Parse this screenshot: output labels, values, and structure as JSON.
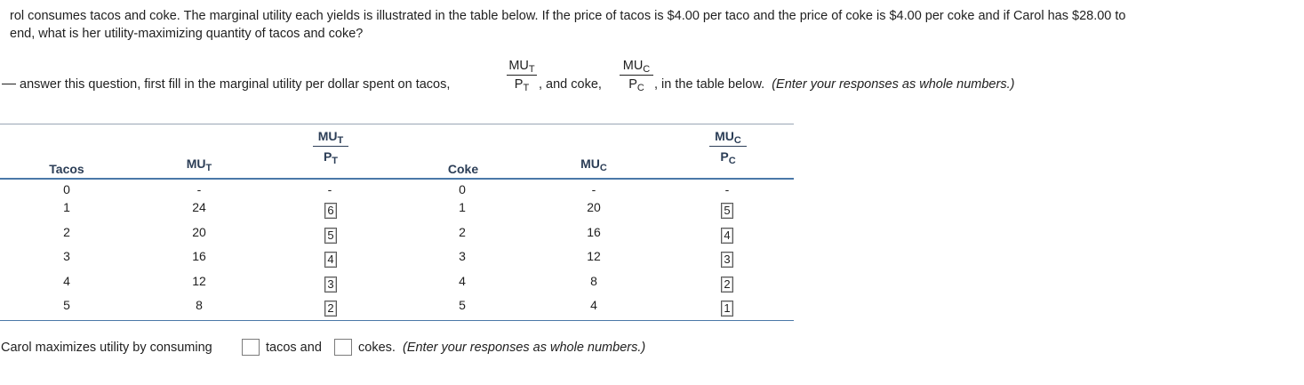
{
  "question": {
    "line1": "rol consumes tacos and coke.  The marginal utility each yields is illustrated in the table below.  If the price of tacos is $4.00 per taco and the price of coke is $4.00 per coke and if Carol has $28.00 to",
    "line2": "end, what is her utility-maximizing quantity of tacos and coke?",
    "instr_a": "answer this question, first fill in the marginal utility per dollar spent on tacos,",
    "instr_b": ", and coke,",
    "instr_c": ", in the table below.",
    "instr_note": "(Enter your responses as whole numbers.)",
    "mu": "MU",
    "p": "P",
    "t": "T",
    "c": "C",
    "comma": ","
  },
  "table": {
    "headers": {
      "tacos": "Tacos",
      "mu": "MU",
      "p": "P",
      "t": "T",
      "coke": "Coke",
      "c": "C"
    },
    "rows": [
      {
        "tacos": "0",
        "mut": "-",
        "mut_pt": "-",
        "coke": "0",
        "muc": "-",
        "muc_pc": "-"
      },
      {
        "tacos": "1",
        "mut": "24",
        "mut_pt": "6",
        "coke": "1",
        "muc": "20",
        "muc_pc": "5"
      },
      {
        "tacos": "2",
        "mut": "20",
        "mut_pt": "5",
        "coke": "2",
        "muc": "16",
        "muc_pc": "4"
      },
      {
        "tacos": "3",
        "mut": "16",
        "mut_pt": "4",
        "coke": "3",
        "muc": "12",
        "muc_pc": "3"
      },
      {
        "tacos": "4",
        "mut": "12",
        "mut_pt": "3",
        "coke": "4",
        "muc": "8",
        "muc_pc": "2"
      },
      {
        "tacos": "5",
        "mut": "8",
        "mut_pt": "2",
        "coke": "5",
        "muc": "4",
        "muc_pc": "1"
      }
    ]
  },
  "answer": {
    "prefix": "Carol maximizes utility by consuming",
    "tacos_value": "",
    "middle": "tacos and",
    "coke_value": "",
    "suffix": "cokes.",
    "note": "(Enter your responses as whole numbers.)"
  }
}
